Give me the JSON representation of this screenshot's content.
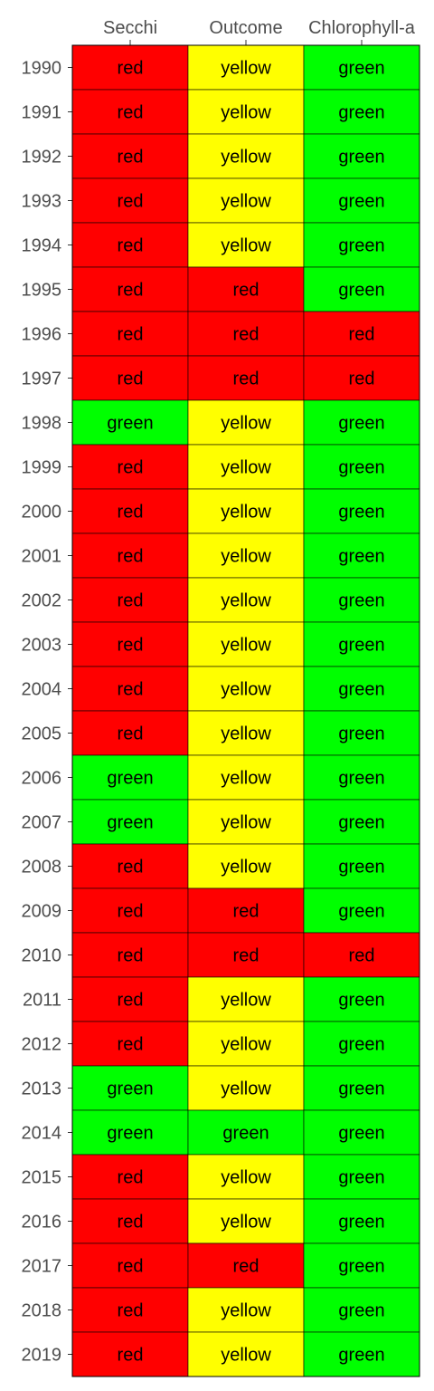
{
  "chart_data": {
    "type": "heatmap",
    "x": [
      "Secchi",
      "Outcome",
      "Chlorophyll-a"
    ],
    "y": [
      "1990",
      "1991",
      "1992",
      "1993",
      "1994",
      "1995",
      "1996",
      "1997",
      "1998",
      "1999",
      "2000",
      "2001",
      "2002",
      "2003",
      "2004",
      "2005",
      "2006",
      "2007",
      "2008",
      "2009",
      "2010",
      "2011",
      "2012",
      "2013",
      "2014",
      "2015",
      "2016",
      "2017",
      "2018",
      "2019"
    ],
    "values": [
      [
        "red",
        "yellow",
        "green"
      ],
      [
        "red",
        "yellow",
        "green"
      ],
      [
        "red",
        "yellow",
        "green"
      ],
      [
        "red",
        "yellow",
        "green"
      ],
      [
        "red",
        "yellow",
        "green"
      ],
      [
        "red",
        "red",
        "green"
      ],
      [
        "red",
        "red",
        "red"
      ],
      [
        "red",
        "red",
        "red"
      ],
      [
        "green",
        "yellow",
        "green"
      ],
      [
        "red",
        "yellow",
        "green"
      ],
      [
        "red",
        "yellow",
        "green"
      ],
      [
        "red",
        "yellow",
        "green"
      ],
      [
        "red",
        "yellow",
        "green"
      ],
      [
        "red",
        "yellow",
        "green"
      ],
      [
        "red",
        "yellow",
        "green"
      ],
      [
        "red",
        "yellow",
        "green"
      ],
      [
        "green",
        "yellow",
        "green"
      ],
      [
        "green",
        "yellow",
        "green"
      ],
      [
        "red",
        "yellow",
        "green"
      ],
      [
        "red",
        "red",
        "green"
      ],
      [
        "red",
        "red",
        "red"
      ],
      [
        "red",
        "yellow",
        "green"
      ],
      [
        "red",
        "yellow",
        "green"
      ],
      [
        "green",
        "yellow",
        "green"
      ],
      [
        "green",
        "green",
        "green"
      ],
      [
        "red",
        "yellow",
        "green"
      ],
      [
        "red",
        "yellow",
        "green"
      ],
      [
        "red",
        "red",
        "green"
      ],
      [
        "red",
        "yellow",
        "green"
      ],
      [
        "red",
        "yellow",
        "green"
      ]
    ],
    "colors": {
      "red": "#ff0000",
      "yellow": "#ffff00",
      "green": "#00ff00"
    },
    "x_axis_position": "top",
    "legend": "none",
    "grid": false
  }
}
